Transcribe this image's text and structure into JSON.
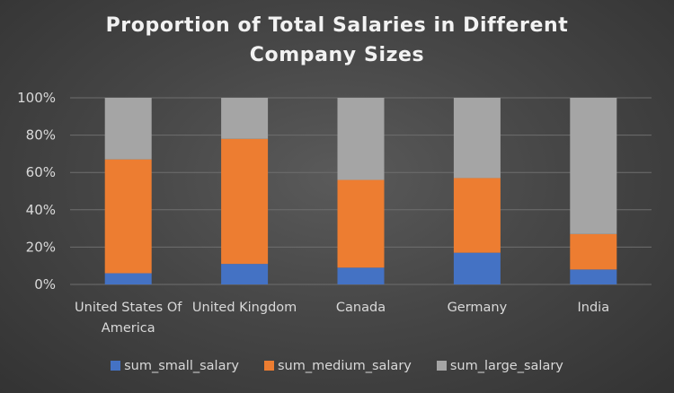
{
  "chart_data": {
    "type": "bar",
    "stacked": true,
    "percent_stacked": true,
    "title_lines": [
      "Proportion of Total Salaries in Different",
      "Company Sizes"
    ],
    "categories": [
      [
        "United States Of",
        "America"
      ],
      [
        "United Kingdom"
      ],
      [
        "Canada"
      ],
      [
        "Germany"
      ],
      [
        "India"
      ]
    ],
    "series": [
      {
        "name": "sum_small_salary",
        "color": "#4472c4",
        "values": [
          6,
          11,
          9,
          17,
          8
        ]
      },
      {
        "name": "sum_medium_salary",
        "color": "#ed7d31",
        "values": [
          61,
          67,
          47,
          40,
          19
        ]
      },
      {
        "name": "sum_large_salary",
        "color": "#a5a5a5",
        "values": [
          33,
          22,
          44,
          43,
          73
        ]
      }
    ],
    "y_ticks": [
      "0%",
      "20%",
      "40%",
      "60%",
      "80%",
      "100%"
    ],
    "ylim": [
      0,
      100
    ],
    "grid": true,
    "legend_position": "bottom"
  }
}
